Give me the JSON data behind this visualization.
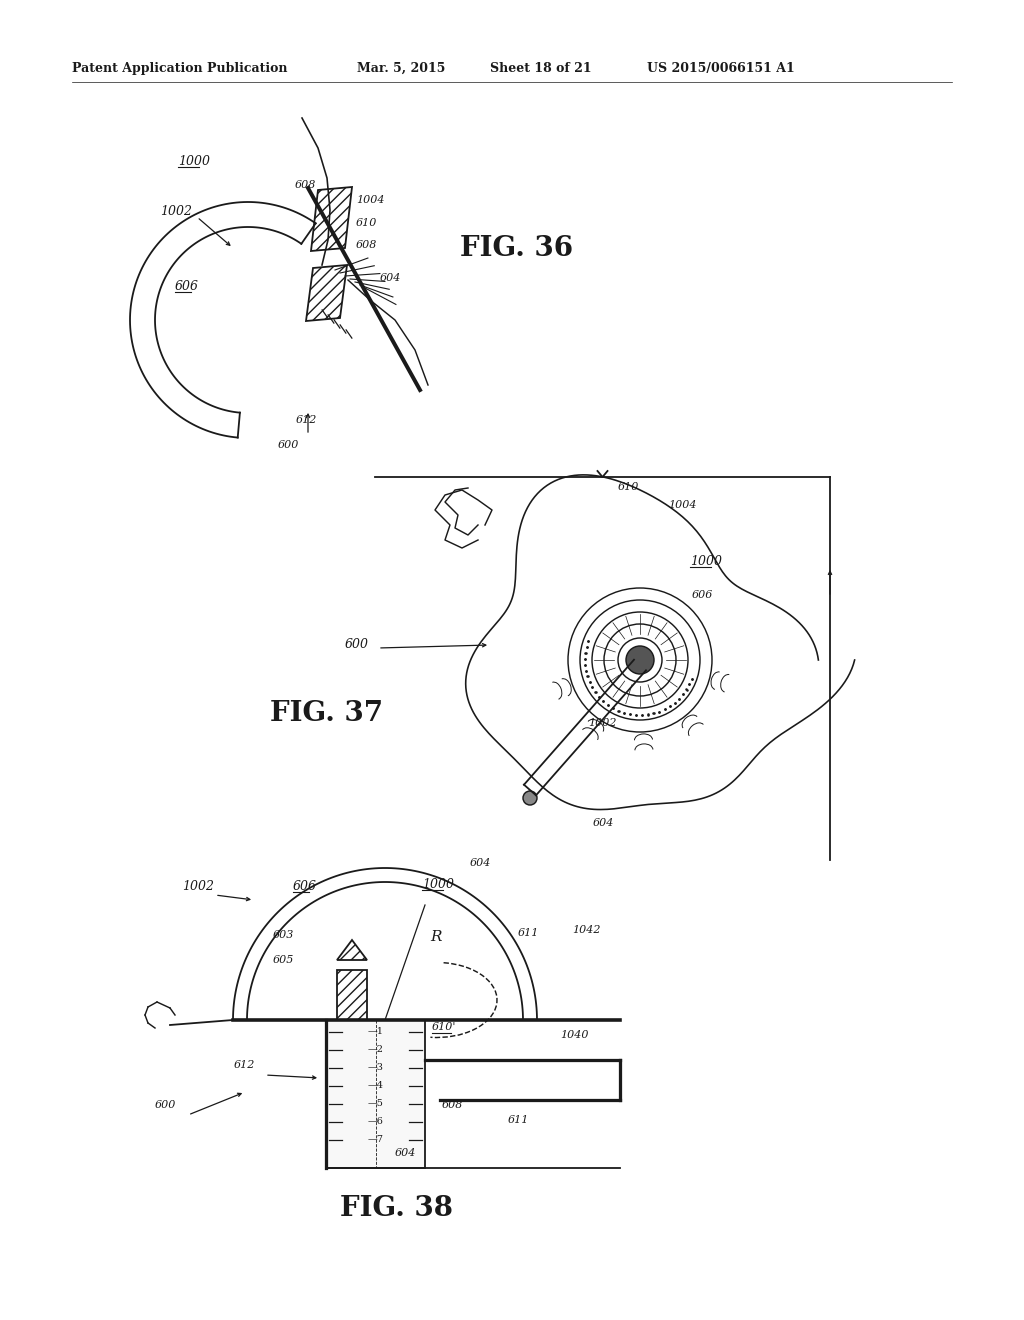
{
  "bg": "#ffffff",
  "lc": "#1a1a1a",
  "header1": "Patent Application Publication",
  "header2": "Mar. 5, 2015",
  "header3": "Sheet 18 of 21",
  "header4": "US 2015/0066151 A1",
  "fig36": "FIG. 36",
  "fig37": "FIG. 37",
  "fig38": "FIG. 38"
}
